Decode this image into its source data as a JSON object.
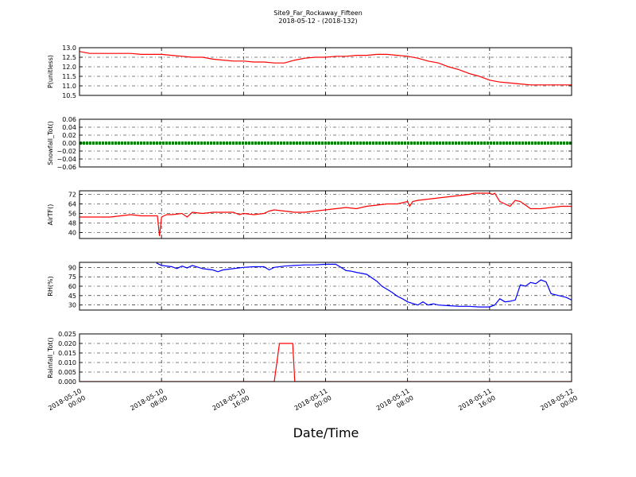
{
  "title_line1": "Site9_Far_Rockaway_Fifteen",
  "title_line2": "2018-05-12 - (2018-132)",
  "xlabel": "Date/Time",
  "x_ticks": [
    [
      "2018-05-10",
      "00:00"
    ],
    [
      "2018-05-10",
      "08:00"
    ],
    [
      "2018-05-10",
      "16:00"
    ],
    [
      "2018-05-11",
      "00:00"
    ],
    [
      "2018-05-11",
      "08:00"
    ],
    [
      "2018-05-11",
      "16:00"
    ],
    [
      "2018-05-12",
      "00:00"
    ]
  ],
  "chart_data": [
    {
      "type": "line",
      "ylabel": "P(unitless)",
      "ylim": [
        10.5,
        13.0
      ],
      "yticks": [
        "13.0",
        "12.5",
        "12.0",
        "11.5",
        "11.0",
        "10.5"
      ],
      "ytick_values": [
        13.0,
        12.5,
        12.0,
        11.5,
        11.0,
        10.5
      ],
      "xlim_hours": [
        0,
        48
      ],
      "color": "#ff0000",
      "grid": true,
      "series": [
        {
          "x": [
            0,
            1,
            2,
            3,
            4,
            5,
            6,
            7,
            8,
            9,
            10,
            11,
            12,
            13,
            14,
            15,
            16,
            17,
            18,
            19,
            20,
            21,
            22,
            23,
            24,
            25,
            26,
            27,
            28,
            29,
            30,
            31,
            32,
            33,
            34,
            35,
            36,
            37,
            38,
            39,
            40,
            41,
            42,
            43,
            44,
            45,
            46,
            47,
            48
          ],
          "values": [
            12.8,
            12.7,
            12.7,
            12.7,
            12.7,
            12.7,
            12.65,
            12.65,
            12.65,
            12.6,
            12.55,
            12.5,
            12.5,
            12.4,
            12.35,
            12.3,
            12.3,
            12.25,
            12.25,
            12.2,
            12.2,
            12.35,
            12.45,
            12.5,
            12.5,
            12.55,
            12.55,
            12.6,
            12.6,
            12.65,
            12.65,
            12.6,
            12.55,
            12.45,
            12.3,
            12.2,
            12.0,
            11.85,
            11.65,
            11.5,
            11.3,
            11.2,
            11.15,
            11.1,
            11.05,
            11.05,
            11.05,
            11.05,
            11.05
          ]
        }
      ]
    },
    {
      "type": "line",
      "ylabel": "Snowfall_Tot()",
      "ylim": [
        -0.06,
        0.06
      ],
      "yticks": [
        "0.06",
        "0.04",
        "0.02",
        "0.00",
        "−0.02",
        "−0.04",
        "−0.06"
      ],
      "ytick_values": [
        0.06,
        0.04,
        0.02,
        0.0,
        -0.02,
        -0.04,
        -0.06
      ],
      "xlim_hours": [
        0,
        48
      ],
      "color": "#008000",
      "grid": true,
      "series": [
        {
          "x": [
            0,
            48
          ],
          "values": [
            0.0,
            0.0
          ]
        }
      ]
    },
    {
      "type": "line",
      "ylabel": "AirTF()",
      "ylim": [
        35,
        75
      ],
      "yticks": [
        "72",
        "64",
        "56",
        "48",
        "40"
      ],
      "ytick_values": [
        72,
        64,
        56,
        48,
        40
      ],
      "xlim_hours": [
        0,
        48
      ],
      "color": "#ff0000",
      "grid": true,
      "series": [
        {
          "x": [
            0,
            2,
            3,
            4,
            5,
            6,
            7,
            7.6,
            7.8,
            8.0,
            8.5,
            9,
            10,
            10.5,
            11,
            12,
            13,
            14,
            15,
            15.6,
            16,
            17,
            18,
            18.5,
            19,
            20,
            21,
            22,
            23,
            24,
            25,
            26,
            27,
            28,
            29,
            30,
            31,
            32,
            32.2,
            32.5,
            33,
            34,
            35,
            36,
            37,
            38,
            38.5,
            39,
            40,
            40.3,
            40.5,
            41,
            42,
            42.5,
            43,
            44,
            45,
            46,
            47,
            48
          ],
          "values": [
            53,
            53,
            53,
            54,
            55,
            54,
            54,
            54,
            37,
            53,
            55,
            55,
            56,
            53,
            57,
            56,
            57,
            57,
            57,
            55,
            56,
            55,
            56,
            58,
            59,
            58,
            57,
            57,
            58,
            59,
            60,
            61,
            60,
            62,
            63,
            64,
            64,
            66,
            62,
            66,
            67,
            68,
            69,
            70,
            71,
            72,
            73,
            73,
            73,
            72,
            73,
            66,
            62,
            67,
            66,
            60,
            60,
            61,
            62,
            62
          ]
        }
      ]
    },
    {
      "type": "line",
      "ylabel": "RH(%)",
      "ylim": [
        22,
        98
      ],
      "yticks": [
        "90",
        "75",
        "60",
        "45",
        "30"
      ],
      "ytick_values": [
        90,
        75,
        60,
        45,
        30
      ],
      "xlim_hours": [
        0,
        48
      ],
      "color": "#0000ff",
      "grid": true,
      "series": [
        {
          "x": [
            7.5,
            8,
            9,
            9.5,
            10,
            10.5,
            11,
            12,
            13,
            13.5,
            14,
            15,
            16,
            17,
            18,
            18.5,
            19,
            20,
            21,
            22,
            23,
            24,
            25,
            26,
            26.5,
            27,
            28,
            29,
            29.5,
            30,
            30.5,
            31,
            31.5,
            32,
            33,
            33.5,
            34,
            34.5,
            35,
            36,
            37,
            38,
            39,
            40,
            40.5,
            41,
            41.5,
            42,
            42.5,
            43,
            43.5,
            44,
            44.5,
            45,
            45.5,
            46,
            47,
            47.5,
            48
          ],
          "values": [
            97,
            93,
            91,
            88,
            92,
            89,
            93,
            88,
            86,
            83,
            86,
            88,
            90,
            91,
            91,
            86,
            90,
            92,
            93,
            94,
            94,
            95,
            95,
            85,
            84,
            82,
            79,
            68,
            60,
            55,
            50,
            44,
            40,
            35,
            30,
            35,
            30,
            32,
            30,
            29,
            28,
            28,
            27,
            27,
            30,
            40,
            35,
            36,
            38,
            62,
            60,
            66,
            64,
            70,
            67,
            48,
            44,
            42,
            38
          ]
        }
      ]
    },
    {
      "type": "line",
      "ylabel": "Rainfall_Tot()",
      "ylim": [
        0.0,
        0.025
      ],
      "yticks": [
        "0.025",
        "0.020",
        "0.015",
        "0.010",
        "0.005",
        "0.000"
      ],
      "ytick_values": [
        0.025,
        0.02,
        0.015,
        0.01,
        0.005,
        0.0
      ],
      "xlim_hours": [
        0,
        48
      ],
      "color": "#ff0000",
      "grid": true,
      "series": [
        {
          "x": [
            0,
            19.0,
            19.5,
            20.8,
            21.0,
            48
          ],
          "values": [
            0.0,
            0.0,
            0.02,
            0.02,
            0.0,
            0.0
          ]
        }
      ]
    }
  ]
}
